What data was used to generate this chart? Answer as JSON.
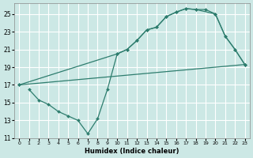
{
  "xlabel": "Humidex (Indice chaleur)",
  "bg_color": "#cce8e5",
  "grid_color": "#ffffff",
  "line_color": "#2e7d6e",
  "xlim": [
    -0.5,
    23.5
  ],
  "ylim": [
    11,
    26.2
  ],
  "xticks": [
    0,
    1,
    2,
    3,
    4,
    5,
    6,
    7,
    8,
    9,
    10,
    11,
    12,
    13,
    14,
    15,
    16,
    17,
    18,
    19,
    20,
    21,
    22,
    23
  ],
  "yticks": [
    11,
    13,
    15,
    17,
    19,
    21,
    23,
    25
  ],
  "line1_x": [
    0,
    10,
    11,
    12,
    13,
    14,
    15,
    16,
    17,
    18,
    19,
    20,
    21,
    22,
    23
  ],
  "line1_y": [
    17.0,
    20.5,
    21.0,
    22.0,
    23.2,
    23.5,
    24.7,
    25.2,
    25.6,
    25.5,
    25.5,
    25.0,
    22.5,
    21.0,
    19.3
  ],
  "line2_x": [
    0,
    23
  ],
  "line2_y": [
    17.0,
    19.3
  ],
  "line3_x": [
    1,
    2,
    3,
    4,
    5,
    6,
    7,
    8,
    9,
    10,
    11,
    12,
    13,
    14,
    15,
    16,
    17,
    18,
    20,
    21,
    22,
    23
  ],
  "line3_y": [
    16.5,
    15.3,
    14.8,
    14.0,
    13.5,
    13.0,
    11.5,
    13.2,
    16.5,
    20.5,
    21.0,
    22.0,
    23.2,
    23.5,
    24.7,
    25.2,
    25.6,
    25.5,
    25.0,
    22.5,
    21.0,
    19.3
  ]
}
